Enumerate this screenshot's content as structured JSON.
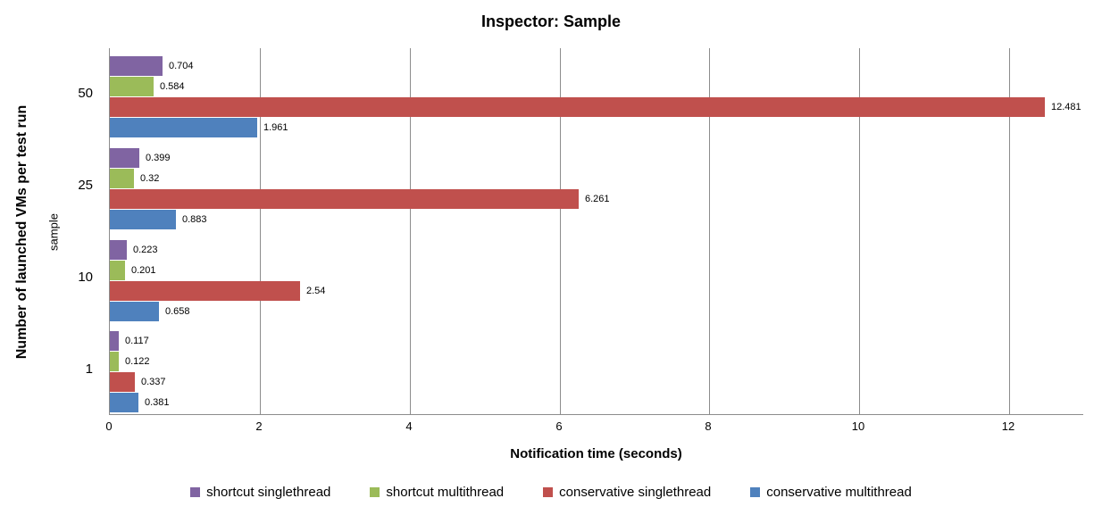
{
  "chart_data": {
    "type": "bar",
    "orientation": "horizontal",
    "title": "Inspector: Sample",
    "xlabel": "Notification time (seconds)",
    "ylabel": "Number of launched VMs per test run",
    "ylabel_secondary": "sample",
    "categories": [
      "50",
      "25",
      "10",
      "1"
    ],
    "series": [
      {
        "name": "shortcut singlethread",
        "color": "#8064A2",
        "values": [
          0.704,
          0.399,
          0.223,
          0.117
        ],
        "labels": [
          "0.704",
          "0.399",
          "0.223",
          "0.117"
        ]
      },
      {
        "name": "shortcut multithread",
        "color": "#9BBB59",
        "values": [
          0.584,
          0.32,
          0.201,
          0.122
        ],
        "labels": [
          "0.584",
          "0.32",
          "0.201",
          "0.122"
        ]
      },
      {
        "name": "conservative singlethread",
        "color": "#C0504D",
        "values": [
          12.481,
          6.261,
          2.54,
          0.337
        ],
        "labels": [
          "12.481",
          "6.261",
          "2.54",
          "0.337"
        ]
      },
      {
        "name": "conservative multithread",
        "color": "#4F81BD",
        "values": [
          1.961,
          0.883,
          0.658,
          0.381
        ],
        "labels": [
          "1.961",
          "0.883",
          "0.658",
          "0.381"
        ]
      }
    ],
    "xlim": [
      0,
      13
    ],
    "xticks": [
      0,
      2,
      4,
      6,
      8,
      10,
      12
    ],
    "grid": true,
    "gridline_color": "#8c8c8c",
    "legend_position": "bottom"
  }
}
